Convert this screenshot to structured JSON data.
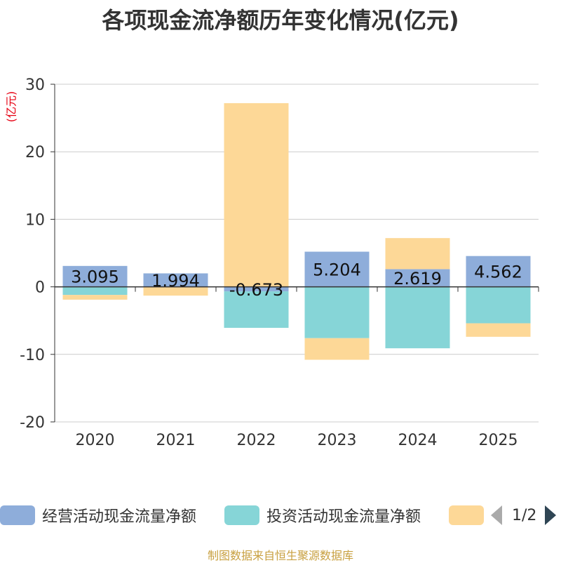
{
  "chart_data": {
    "type": "bar",
    "stacked": true,
    "title": "各项现金流净额历年变化情况(亿元)",
    "ylabel": "(亿元)",
    "ylim": [
      -20,
      30
    ],
    "yticks": [
      30,
      20,
      10,
      0,
      -10,
      -20
    ],
    "categories": [
      "2020",
      "2021",
      "2022",
      "2023",
      "2024",
      "2025"
    ],
    "series": [
      {
        "name": "经营活动现金流量净额",
        "color": "#8eadda",
        "values": [
          3.095,
          1.994,
          -0.673,
          5.204,
          2.619,
          4.562
        ],
        "labels": [
          "3.095",
          "1.994",
          "-0.673",
          "5.204",
          "2.619",
          "4.562"
        ]
      },
      {
        "name": "投资活动现金流量净额",
        "color": "#86d5d7",
        "values": [
          -1.2,
          0.0,
          -5.4,
          -7.6,
          -9.1,
          -5.4
        ]
      },
      {
        "name": "",
        "color": "#fdd897",
        "values": [
          -0.7,
          -1.3,
          27.2,
          -3.2,
          4.6,
          -2.0
        ]
      }
    ],
    "legend_position": "bottom"
  },
  "legend": {
    "items": [
      {
        "label": "经营活动现金流量净额",
        "color": "#8eadda"
      },
      {
        "label": "投资活动现金流量净额",
        "color": "#86d5d7"
      },
      {
        "label": "",
        "color": "#fdd897"
      }
    ],
    "page": "1/2"
  },
  "source_text": "制图数据来自恒生聚源数据库"
}
